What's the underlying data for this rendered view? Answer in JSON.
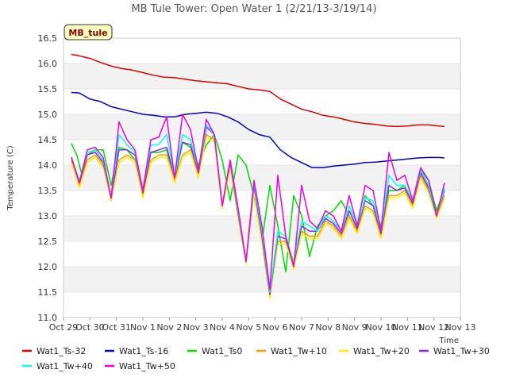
{
  "chart_data": {
    "type": "line",
    "title": "MB Tule Tower: Open Water 1 (2/21/13-3/19/14)",
    "xlabel": "Time",
    "ylabel": "Temperature (C)",
    "site_tag": "MB_tule",
    "xlim": [
      0,
      15
    ],
    "ylim": [
      11.0,
      16.5
    ],
    "x_ticks": [
      {
        "v": 0,
        "label": "Oct 29"
      },
      {
        "v": 1,
        "label": "Oct 30"
      },
      {
        "v": 2,
        "label": "Oct 31"
      },
      {
        "v": 3,
        "label": "Nov 1"
      },
      {
        "v": 4,
        "label": "Nov 2"
      },
      {
        "v": 5,
        "label": "Nov 3"
      },
      {
        "v": 6,
        "label": "Nov 4"
      },
      {
        "v": 7,
        "label": "Nov 5"
      },
      {
        "v": 8,
        "label": "Nov 6"
      },
      {
        "v": 9,
        "label": "Nov 7"
      },
      {
        "v": 10,
        "label": "Nov 8"
      },
      {
        "v": 11,
        "label": "Nov 9"
      },
      {
        "v": 12,
        "label": "Nov 10"
      },
      {
        "v": 13,
        "label": "Nov 11"
      },
      {
        "v": 14,
        "label": "Nov 12"
      },
      {
        "v": 15,
        "label": "Nov 13"
      }
    ],
    "y_ticks": [
      "11.0",
      "11.5",
      "12.0",
      "12.5",
      "13.0",
      "13.5",
      "14.0",
      "14.5",
      "15.0",
      "15.5",
      "16.0",
      "16.5"
    ],
    "series": [
      {
        "name": "Wat1_Ts-32",
        "color": "#dd0000",
        "x": [
          0.3,
          0.6,
          1.0,
          1.4,
          1.8,
          2.2,
          2.6,
          3.0,
          3.4,
          3.8,
          4.2,
          4.6,
          5.0,
          5.4,
          5.8,
          6.2,
          6.6,
          7.0,
          7.4,
          7.8,
          8.2,
          8.6,
          9.0,
          9.4,
          9.8,
          10.2,
          10.6,
          11.0,
          11.4,
          11.8,
          12.2,
          12.6,
          13.0,
          13.4,
          13.8,
          14.2,
          14.4
        ],
        "y": [
          16.18,
          16.15,
          16.1,
          16.02,
          15.95,
          15.9,
          15.87,
          15.82,
          15.77,
          15.73,
          15.72,
          15.69,
          15.66,
          15.64,
          15.62,
          15.6,
          15.55,
          15.5,
          15.48,
          15.45,
          15.3,
          15.2,
          15.1,
          15.05,
          14.98,
          14.95,
          14.9,
          14.85,
          14.82,
          14.8,
          14.77,
          14.76,
          14.77,
          14.79,
          14.79,
          14.77,
          14.76
        ]
      },
      {
        "name": "Wat1_Ts-16",
        "color": "#0000cc",
        "x": [
          0.3,
          0.6,
          1.0,
          1.4,
          1.8,
          2.2,
          2.6,
          3.0,
          3.4,
          3.8,
          4.2,
          4.6,
          5.0,
          5.4,
          5.8,
          6.2,
          6.6,
          7.0,
          7.4,
          7.8,
          8.2,
          8.6,
          9.0,
          9.4,
          9.8,
          10.2,
          10.6,
          11.0,
          11.4,
          11.8,
          12.2,
          12.6,
          13.0,
          13.4,
          13.8,
          14.2,
          14.4
        ],
        "y": [
          15.43,
          15.42,
          15.3,
          15.25,
          15.15,
          15.1,
          15.05,
          15.0,
          14.98,
          14.95,
          14.95,
          15.0,
          15.02,
          15.04,
          15.02,
          14.95,
          14.85,
          14.7,
          14.6,
          14.55,
          14.3,
          14.15,
          14.05,
          13.95,
          13.95,
          13.98,
          14.0,
          14.02,
          14.05,
          14.06,
          14.08,
          14.1,
          14.12,
          14.14,
          14.15,
          14.15,
          14.14
        ]
      },
      {
        "name": "Wat1_Ts0",
        "color": "#00dd00",
        "x": [
          0.3,
          0.5,
          0.7,
          0.9,
          1.2,
          1.5,
          1.8,
          2.1,
          2.4,
          2.7,
          3.0,
          3.3,
          3.6,
          3.9,
          4.2,
          4.5,
          4.8,
          5.1,
          5.4,
          5.7,
          6.0,
          6.3,
          6.6,
          6.9,
          7.2,
          7.5,
          7.8,
          8.1,
          8.4,
          8.7,
          9.0,
          9.3,
          9.6,
          9.9,
          10.2,
          10.5,
          10.8,
          11.1,
          11.4,
          11.7,
          12.0,
          12.3,
          12.6,
          12.9,
          13.2,
          13.5,
          13.8,
          14.1,
          14.4
        ],
        "y": [
          14.42,
          14.2,
          13.8,
          14.2,
          14.3,
          14.3,
          13.6,
          14.35,
          14.3,
          14.1,
          13.5,
          14.25,
          14.25,
          14.3,
          13.7,
          14.45,
          14.35,
          14.0,
          14.4,
          14.6,
          14.1,
          13.3,
          14.2,
          14.0,
          13.4,
          12.5,
          13.6,
          12.8,
          11.9,
          13.4,
          13.0,
          12.2,
          12.8,
          13.0,
          13.1,
          13.3,
          13.0,
          12.7,
          13.4,
          13.2,
          12.8,
          13.5,
          13.5,
          13.6,
          13.2,
          13.9,
          13.7,
          13.1,
          13.55
        ]
      },
      {
        "name": "Wat1_Tw+10",
        "color": "#ff9900",
        "x": [
          0.3,
          0.6,
          0.9,
          1.2,
          1.5,
          1.8,
          2.1,
          2.4,
          2.7,
          3.0,
          3.3,
          3.6,
          3.9,
          4.2,
          4.5,
          4.8,
          5.1,
          5.4,
          5.7,
          6.0,
          6.3,
          6.6,
          6.9,
          7.2,
          7.5,
          7.8,
          8.1,
          8.4,
          8.7,
          9.0,
          9.3,
          9.6,
          9.9,
          10.2,
          10.5,
          10.8,
          11.1,
          11.4,
          11.7,
          12.0,
          12.3,
          12.6,
          12.9,
          13.2,
          13.5,
          13.8,
          14.1,
          14.4
        ],
        "y": [
          14.1,
          13.6,
          14.1,
          14.2,
          14.0,
          13.3,
          14.1,
          14.2,
          14.1,
          13.4,
          14.1,
          14.2,
          14.2,
          13.7,
          14.2,
          14.3,
          13.8,
          14.6,
          14.5,
          13.2,
          14.0,
          13.0,
          12.1,
          13.5,
          12.5,
          11.4,
          12.5,
          12.5,
          12.0,
          12.7,
          12.6,
          12.6,
          12.9,
          12.8,
          12.6,
          13.0,
          12.7,
          13.2,
          13.1,
          12.6,
          13.4,
          13.4,
          13.5,
          13.2,
          13.8,
          13.5,
          13.0,
          13.4
        ]
      },
      {
        "name": "Wat1_Tw+20",
        "color": "#ffee00",
        "x": [
          0.3,
          0.6,
          0.9,
          1.2,
          1.5,
          1.8,
          2.1,
          2.4,
          2.7,
          3.0,
          3.3,
          3.6,
          3.9,
          4.2,
          4.5,
          4.8,
          5.1,
          5.4,
          5.7,
          6.0,
          6.3,
          6.6,
          6.9,
          7.2,
          7.5,
          7.8,
          8.1,
          8.4,
          8.7,
          9.0,
          9.3,
          9.6,
          9.9,
          10.2,
          10.5,
          10.8,
          11.1,
          11.4,
          11.7,
          12.0,
          12.3,
          12.6,
          12.9,
          13.2,
          13.5,
          13.8,
          14.1,
          14.4
        ],
        "y": [
          14.05,
          13.55,
          14.05,
          14.15,
          13.95,
          13.3,
          14.05,
          14.15,
          14.05,
          13.35,
          14.05,
          14.15,
          14.15,
          13.65,
          14.15,
          14.25,
          13.75,
          14.55,
          14.45,
          13.15,
          13.95,
          12.95,
          12.05,
          13.45,
          12.45,
          11.38,
          12.45,
          12.45,
          11.95,
          12.65,
          12.55,
          12.55,
          12.85,
          12.75,
          12.55,
          12.95,
          12.65,
          13.15,
          13.05,
          12.55,
          13.35,
          13.35,
          13.45,
          13.15,
          13.75,
          13.45,
          12.95,
          13.35
        ]
      },
      {
        "name": "Wat1_Tw+30",
        "color": "#8a2be2",
        "x": [
          0.3,
          0.6,
          0.9,
          1.2,
          1.5,
          1.8,
          2.1,
          2.4,
          2.7,
          3.0,
          3.3,
          3.6,
          3.9,
          4.2,
          4.5,
          4.8,
          5.1,
          5.4,
          5.7,
          6.0,
          6.3,
          6.6,
          6.9,
          7.2,
          7.5,
          7.8,
          8.1,
          8.4,
          8.7,
          9.0,
          9.3,
          9.6,
          9.9,
          10.2,
          10.5,
          10.8,
          11.1,
          11.4,
          11.7,
          12.0,
          12.3,
          12.6,
          12.9,
          13.2,
          13.5,
          13.8,
          14.1,
          14.4
        ],
        "y": [
          14.15,
          13.65,
          14.2,
          14.25,
          14.05,
          13.35,
          14.3,
          14.3,
          14.2,
          13.45,
          14.25,
          14.3,
          14.35,
          13.75,
          14.45,
          14.4,
          13.85,
          14.75,
          14.6,
          13.2,
          14.05,
          13.05,
          12.1,
          13.6,
          12.6,
          11.45,
          12.6,
          12.55,
          12.05,
          12.8,
          12.7,
          12.7,
          12.95,
          12.85,
          12.65,
          13.1,
          12.75,
          13.3,
          13.2,
          12.65,
          13.6,
          13.5,
          13.55,
          13.25,
          13.85,
          13.55,
          13.0,
          13.5
        ]
      },
      {
        "name": "Wat1_Tw+40",
        "color": "#00ffff",
        "x": [
          0.3,
          0.6,
          0.9,
          1.2,
          1.5,
          1.8,
          2.1,
          2.4,
          2.7,
          3.0,
          3.3,
          3.6,
          3.9,
          4.2,
          4.5,
          4.8,
          5.1,
          5.4,
          5.7,
          6.0,
          6.3,
          6.6,
          6.9,
          7.2,
          7.5,
          7.8,
          8.1,
          8.4,
          8.7,
          9.0,
          9.3,
          9.6,
          9.9,
          10.2,
          10.5,
          10.8,
          11.1,
          11.4,
          11.7,
          12.0,
          12.3,
          12.6,
          12.9,
          13.2,
          13.5,
          13.8,
          14.1,
          14.4
        ],
        "y": [
          14.15,
          13.7,
          14.25,
          14.3,
          14.1,
          13.35,
          14.6,
          14.4,
          14.25,
          13.5,
          14.4,
          14.4,
          14.6,
          13.75,
          14.6,
          14.5,
          13.9,
          14.8,
          14.6,
          13.2,
          14.1,
          13.1,
          12.1,
          13.65,
          12.7,
          11.5,
          12.7,
          12.6,
          12.1,
          12.9,
          12.8,
          12.7,
          13.0,
          12.9,
          12.7,
          13.2,
          12.8,
          13.35,
          13.3,
          12.7,
          13.8,
          13.6,
          13.6,
          13.3,
          13.9,
          13.6,
          13.0,
          13.55
        ]
      },
      {
        "name": "Wat1_Tw+50",
        "color": "#ee00ee",
        "x": [
          0.3,
          0.6,
          0.9,
          1.2,
          1.5,
          1.8,
          2.1,
          2.4,
          2.7,
          3.0,
          3.3,
          3.6,
          3.9,
          4.2,
          4.5,
          4.8,
          5.1,
          5.4,
          5.7,
          6.0,
          6.3,
          6.6,
          6.9,
          7.2,
          7.5,
          7.8,
          8.1,
          8.4,
          8.7,
          9.0,
          9.3,
          9.6,
          9.9,
          10.2,
          10.5,
          10.8,
          11.1,
          11.4,
          11.7,
          12.0,
          12.3,
          12.6,
          12.9,
          13.2,
          13.5,
          13.8,
          14.1,
          14.4
        ],
        "y": [
          14.15,
          13.65,
          14.3,
          14.35,
          14.15,
          13.35,
          14.85,
          14.5,
          14.3,
          13.5,
          14.5,
          14.55,
          14.95,
          13.75,
          15.0,
          14.7,
          13.9,
          14.9,
          14.6,
          13.2,
          14.1,
          13.15,
          12.1,
          13.7,
          12.8,
          11.55,
          13.8,
          12.6,
          12.0,
          13.6,
          12.9,
          12.75,
          13.1,
          13.0,
          12.7,
          13.4,
          12.8,
          13.6,
          13.5,
          12.7,
          14.25,
          13.7,
          13.8,
          13.3,
          13.95,
          13.7,
          13.0,
          13.65
        ]
      }
    ]
  }
}
